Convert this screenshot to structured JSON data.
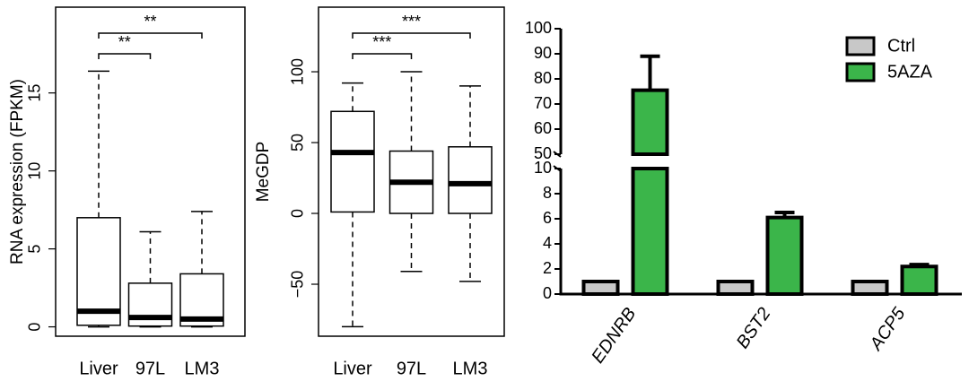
{
  "chart_data": [
    {
      "type": "box",
      "y_label": "RNA expression (FPKM)",
      "categories": [
        "Liver",
        "97L",
        "LM3"
      ],
      "boxes": [
        {
          "min": 0,
          "q1": 0.1,
          "median": 1.0,
          "q3": 7.0,
          "max": 16.4
        },
        {
          "min": 0,
          "q1": 0.05,
          "median": 0.6,
          "q3": 2.8,
          "max": 6.1
        },
        {
          "min": 0,
          "q1": 0.05,
          "median": 0.5,
          "q3": 3.4,
          "max": 7.4
        }
      ],
      "ylim": [
        -0.6,
        20.5
      ],
      "yticks": [
        0,
        5,
        10,
        15
      ],
      "annotations": [
        "**",
        "**"
      ]
    },
    {
      "type": "box",
      "y_label": "MeGDP",
      "categories": [
        "Liver",
        "97L",
        "LM3"
      ],
      "boxes": [
        {
          "min": -80,
          "q1": 1,
          "median": 43,
          "q3": 72,
          "max": 92
        },
        {
          "min": -41,
          "q1": 0,
          "median": 22,
          "q3": 44,
          "max": 100
        },
        {
          "min": -48,
          "q1": 0,
          "median": 21,
          "q3": 47,
          "max": 90
        }
      ],
      "ylim": [
        -86.7,
        145.6
      ],
      "yticks": [
        {
          "value": -50,
          "label": "−50"
        },
        0,
        50,
        100
      ],
      "annotations": [
        "***",
        "***"
      ]
    },
    {
      "type": "bar",
      "categories": [
        "EDNRB",
        "BST2",
        "ACP5"
      ],
      "series": [
        {
          "name": "Ctrl",
          "color": "#c8c8c8",
          "values": [
            1,
            1,
            1
          ]
        },
        {
          "name": "5AZA",
          "color": "#3bb54a",
          "values": [
            75.5,
            6.1,
            2.2
          ],
          "errors": [
            13.5,
            0.4,
            0.15
          ]
        }
      ],
      "ylim": [
        0,
        100
      ],
      "ybreak": [
        10,
        50
      ],
      "yticks": [
        0,
        2,
        4,
        6,
        8,
        10,
        50,
        60,
        70,
        80,
        90,
        100
      ],
      "legend": "upper right"
    }
  ]
}
